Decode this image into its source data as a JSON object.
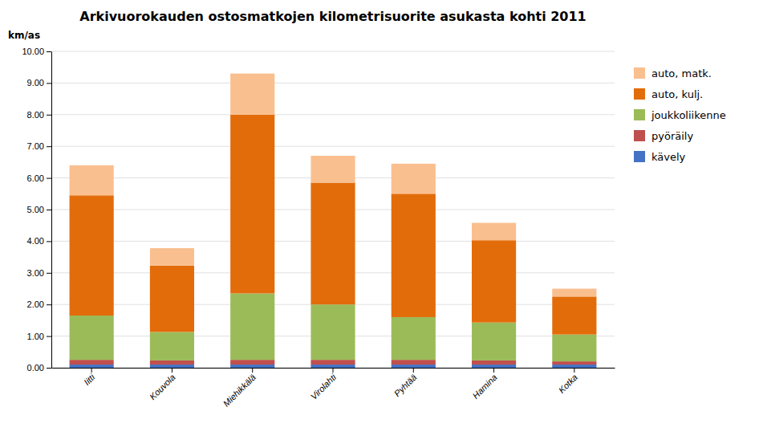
{
  "chart_data": {
    "type": "bar",
    "stacked": true,
    "title": "Arkivuorokauden ostosmatkojen kilometrisuorite asukasta kohti 2011",
    "ylabel": "km/as",
    "categories": [
      "Iitti",
      "Kouvola",
      "Miehikkälä",
      "Virolahti",
      "Pyhtää",
      "Hamina",
      "Kotka"
    ],
    "series": [
      {
        "name": "kävely",
        "color": "#4472C4",
        "values": [
          0.1,
          0.1,
          0.1,
          0.1,
          0.1,
          0.1,
          0.1
        ]
      },
      {
        "name": "pyöräily",
        "color": "#C0504D",
        "values": [
          0.15,
          0.13,
          0.15,
          0.15,
          0.15,
          0.13,
          0.1
        ]
      },
      {
        "name": "joukkoliikenne",
        "color": "#9BBB59",
        "values": [
          1.4,
          0.9,
          2.1,
          1.75,
          1.35,
          1.2,
          0.85
        ]
      },
      {
        "name": "auto, kulj.",
        "color": "#E36C0A",
        "values": [
          3.8,
          2.1,
          5.65,
          3.85,
          3.9,
          2.6,
          1.2
        ]
      },
      {
        "name": "auto, matk.",
        "color": "#FABF8F",
        "values": [
          0.95,
          0.55,
          1.3,
          0.85,
          0.95,
          0.55,
          0.25
        ]
      }
    ],
    "ylim": [
      0,
      10.0
    ],
    "yticks": [
      {
        "value": 0.0,
        "label": "0.00"
      },
      {
        "value": 1.0,
        "label": "1.00"
      },
      {
        "value": 2.0,
        "label": "2.00"
      },
      {
        "value": 3.0,
        "label": "3.00"
      },
      {
        "value": 4.0,
        "label": "4.00"
      },
      {
        "value": 5.0,
        "label": "5.00"
      },
      {
        "value": 6.0,
        "label": "6.00"
      },
      {
        "value": 7.0,
        "label": "7.00"
      },
      {
        "value": 8.0,
        "label": "8.00"
      },
      {
        "value": 9.0,
        "label": "9.00"
      },
      {
        "value": 10.0,
        "label": "10.00"
      }
    ],
    "grid": true,
    "legend": "right"
  }
}
